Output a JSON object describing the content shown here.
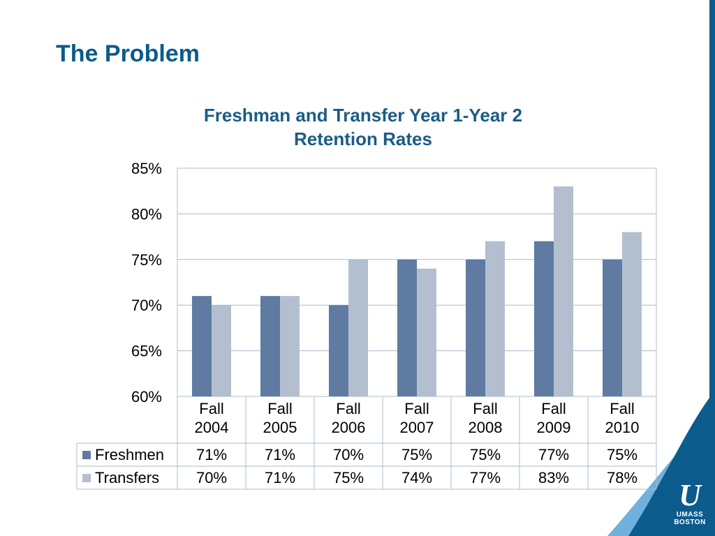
{
  "slide": {
    "title": "The Problem"
  },
  "logo": {
    "line1": "UMASS",
    "line2": "BOSTON"
  },
  "colors": {
    "title": "#0b5b8c",
    "freshmen": "#5f7ba1",
    "transfers": "#b3bfcf",
    "grid": "#a8bcd0",
    "deco_dark": "#0b5b8c",
    "deco_light": "#5aa0d0"
  },
  "chart_data": {
    "type": "bar",
    "title_lines": [
      "Freshman and Transfer Year 1-Year 2",
      "Retention Rates"
    ],
    "categories": [
      [
        "Fall",
        "2004"
      ],
      [
        "Fall",
        "2005"
      ],
      [
        "Fall",
        "2006"
      ],
      [
        "Fall",
        "2007"
      ],
      [
        "Fall",
        "2008"
      ],
      [
        "Fall",
        "2009"
      ],
      [
        "Fall",
        "2010"
      ]
    ],
    "series": [
      {
        "name": "Freshmen",
        "values": [
          71,
          71,
          70,
          75,
          75,
          77,
          75
        ],
        "labels": [
          "71%",
          "71%",
          "70%",
          "75%",
          "75%",
          "77%",
          "75%"
        ]
      },
      {
        "name": "Transfers",
        "values": [
          70,
          71,
          75,
          74,
          77,
          83,
          78
        ],
        "labels": [
          "70%",
          "71%",
          "75%",
          "74%",
          "77%",
          "83%",
          "78%"
        ]
      }
    ],
    "ylim": [
      60,
      85
    ],
    "yticks": [
      60,
      65,
      70,
      75,
      80,
      85
    ],
    "ytick_labels": [
      "60%",
      "65%",
      "70%",
      "75%",
      "80%",
      "85%"
    ],
    "grid": true,
    "legend": "data-table"
  }
}
